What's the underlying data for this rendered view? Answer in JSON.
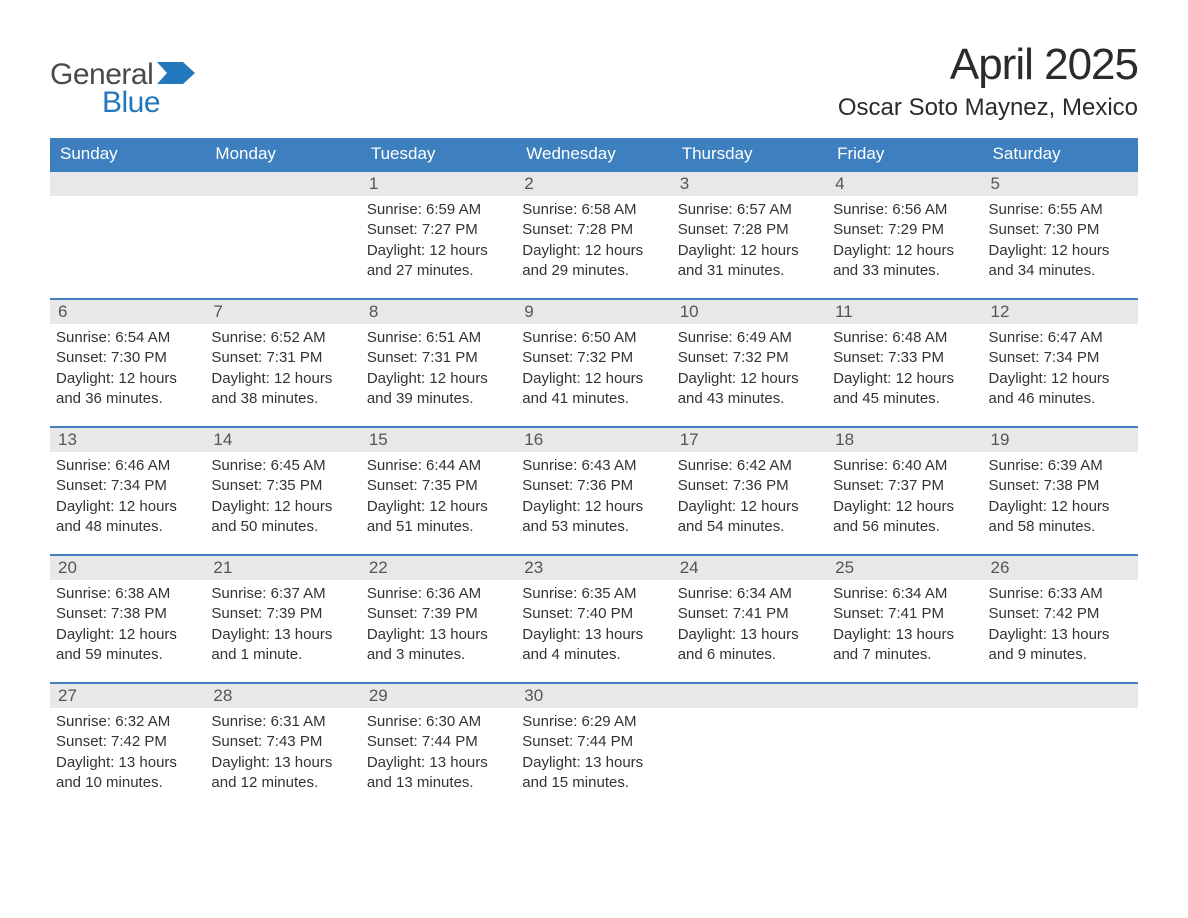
{
  "brand": {
    "word1": "General",
    "word2": "Blue",
    "word1_color": "#4a4a4a",
    "word2_color": "#2378bd",
    "flag_color": "#2378bd"
  },
  "title": "April 2025",
  "location": "Oscar Soto Maynez, Mexico",
  "colors": {
    "header_bg": "#3d7fbf",
    "header_text": "#ffffff",
    "daynum_bg": "#e8e8e8",
    "daynum_text": "#555555",
    "body_text": "#333333",
    "week_border": "#3d7fbf",
    "page_bg": "#ffffff"
  },
  "typography": {
    "title_fontsize": 44,
    "location_fontsize": 24,
    "dayheader_fontsize": 17,
    "daynum_fontsize": 17,
    "content_fontsize": 15
  },
  "day_headers": [
    "Sunday",
    "Monday",
    "Tuesday",
    "Wednesday",
    "Thursday",
    "Friday",
    "Saturday"
  ],
  "weeks": [
    [
      {
        "num": "",
        "sunrise": "",
        "sunset": "",
        "daylight": ""
      },
      {
        "num": "",
        "sunrise": "",
        "sunset": "",
        "daylight": ""
      },
      {
        "num": "1",
        "sunrise": "Sunrise: 6:59 AM",
        "sunset": "Sunset: 7:27 PM",
        "daylight": "Daylight: 12 hours and 27 minutes."
      },
      {
        "num": "2",
        "sunrise": "Sunrise: 6:58 AM",
        "sunset": "Sunset: 7:28 PM",
        "daylight": "Daylight: 12 hours and 29 minutes."
      },
      {
        "num": "3",
        "sunrise": "Sunrise: 6:57 AM",
        "sunset": "Sunset: 7:28 PM",
        "daylight": "Daylight: 12 hours and 31 minutes."
      },
      {
        "num": "4",
        "sunrise": "Sunrise: 6:56 AM",
        "sunset": "Sunset: 7:29 PM",
        "daylight": "Daylight: 12 hours and 33 minutes."
      },
      {
        "num": "5",
        "sunrise": "Sunrise: 6:55 AM",
        "sunset": "Sunset: 7:30 PM",
        "daylight": "Daylight: 12 hours and 34 minutes."
      }
    ],
    [
      {
        "num": "6",
        "sunrise": "Sunrise: 6:54 AM",
        "sunset": "Sunset: 7:30 PM",
        "daylight": "Daylight: 12 hours and 36 minutes."
      },
      {
        "num": "7",
        "sunrise": "Sunrise: 6:52 AM",
        "sunset": "Sunset: 7:31 PM",
        "daylight": "Daylight: 12 hours and 38 minutes."
      },
      {
        "num": "8",
        "sunrise": "Sunrise: 6:51 AM",
        "sunset": "Sunset: 7:31 PM",
        "daylight": "Daylight: 12 hours and 39 minutes."
      },
      {
        "num": "9",
        "sunrise": "Sunrise: 6:50 AM",
        "sunset": "Sunset: 7:32 PM",
        "daylight": "Daylight: 12 hours and 41 minutes."
      },
      {
        "num": "10",
        "sunrise": "Sunrise: 6:49 AM",
        "sunset": "Sunset: 7:32 PM",
        "daylight": "Daylight: 12 hours and 43 minutes."
      },
      {
        "num": "11",
        "sunrise": "Sunrise: 6:48 AM",
        "sunset": "Sunset: 7:33 PM",
        "daylight": "Daylight: 12 hours and 45 minutes."
      },
      {
        "num": "12",
        "sunrise": "Sunrise: 6:47 AM",
        "sunset": "Sunset: 7:34 PM",
        "daylight": "Daylight: 12 hours and 46 minutes."
      }
    ],
    [
      {
        "num": "13",
        "sunrise": "Sunrise: 6:46 AM",
        "sunset": "Sunset: 7:34 PM",
        "daylight": "Daylight: 12 hours and 48 minutes."
      },
      {
        "num": "14",
        "sunrise": "Sunrise: 6:45 AM",
        "sunset": "Sunset: 7:35 PM",
        "daylight": "Daylight: 12 hours and 50 minutes."
      },
      {
        "num": "15",
        "sunrise": "Sunrise: 6:44 AM",
        "sunset": "Sunset: 7:35 PM",
        "daylight": "Daylight: 12 hours and 51 minutes."
      },
      {
        "num": "16",
        "sunrise": "Sunrise: 6:43 AM",
        "sunset": "Sunset: 7:36 PM",
        "daylight": "Daylight: 12 hours and 53 minutes."
      },
      {
        "num": "17",
        "sunrise": "Sunrise: 6:42 AM",
        "sunset": "Sunset: 7:36 PM",
        "daylight": "Daylight: 12 hours and 54 minutes."
      },
      {
        "num": "18",
        "sunrise": "Sunrise: 6:40 AM",
        "sunset": "Sunset: 7:37 PM",
        "daylight": "Daylight: 12 hours and 56 minutes."
      },
      {
        "num": "19",
        "sunrise": "Sunrise: 6:39 AM",
        "sunset": "Sunset: 7:38 PM",
        "daylight": "Daylight: 12 hours and 58 minutes."
      }
    ],
    [
      {
        "num": "20",
        "sunrise": "Sunrise: 6:38 AM",
        "sunset": "Sunset: 7:38 PM",
        "daylight": "Daylight: 12 hours and 59 minutes."
      },
      {
        "num": "21",
        "sunrise": "Sunrise: 6:37 AM",
        "sunset": "Sunset: 7:39 PM",
        "daylight": "Daylight: 13 hours and 1 minute."
      },
      {
        "num": "22",
        "sunrise": "Sunrise: 6:36 AM",
        "sunset": "Sunset: 7:39 PM",
        "daylight": "Daylight: 13 hours and 3 minutes."
      },
      {
        "num": "23",
        "sunrise": "Sunrise: 6:35 AM",
        "sunset": "Sunset: 7:40 PM",
        "daylight": "Daylight: 13 hours and 4 minutes."
      },
      {
        "num": "24",
        "sunrise": "Sunrise: 6:34 AM",
        "sunset": "Sunset: 7:41 PM",
        "daylight": "Daylight: 13 hours and 6 minutes."
      },
      {
        "num": "25",
        "sunrise": "Sunrise: 6:34 AM",
        "sunset": "Sunset: 7:41 PM",
        "daylight": "Daylight: 13 hours and 7 minutes."
      },
      {
        "num": "26",
        "sunrise": "Sunrise: 6:33 AM",
        "sunset": "Sunset: 7:42 PM",
        "daylight": "Daylight: 13 hours and 9 minutes."
      }
    ],
    [
      {
        "num": "27",
        "sunrise": "Sunrise: 6:32 AM",
        "sunset": "Sunset: 7:42 PM",
        "daylight": "Daylight: 13 hours and 10 minutes."
      },
      {
        "num": "28",
        "sunrise": "Sunrise: 6:31 AM",
        "sunset": "Sunset: 7:43 PM",
        "daylight": "Daylight: 13 hours and 12 minutes."
      },
      {
        "num": "29",
        "sunrise": "Sunrise: 6:30 AM",
        "sunset": "Sunset: 7:44 PM",
        "daylight": "Daylight: 13 hours and 13 minutes."
      },
      {
        "num": "30",
        "sunrise": "Sunrise: 6:29 AM",
        "sunset": "Sunset: 7:44 PM",
        "daylight": "Daylight: 13 hours and 15 minutes."
      },
      {
        "num": "",
        "sunrise": "",
        "sunset": "",
        "daylight": ""
      },
      {
        "num": "",
        "sunrise": "",
        "sunset": "",
        "daylight": ""
      },
      {
        "num": "",
        "sunrise": "",
        "sunset": "",
        "daylight": ""
      }
    ]
  ]
}
